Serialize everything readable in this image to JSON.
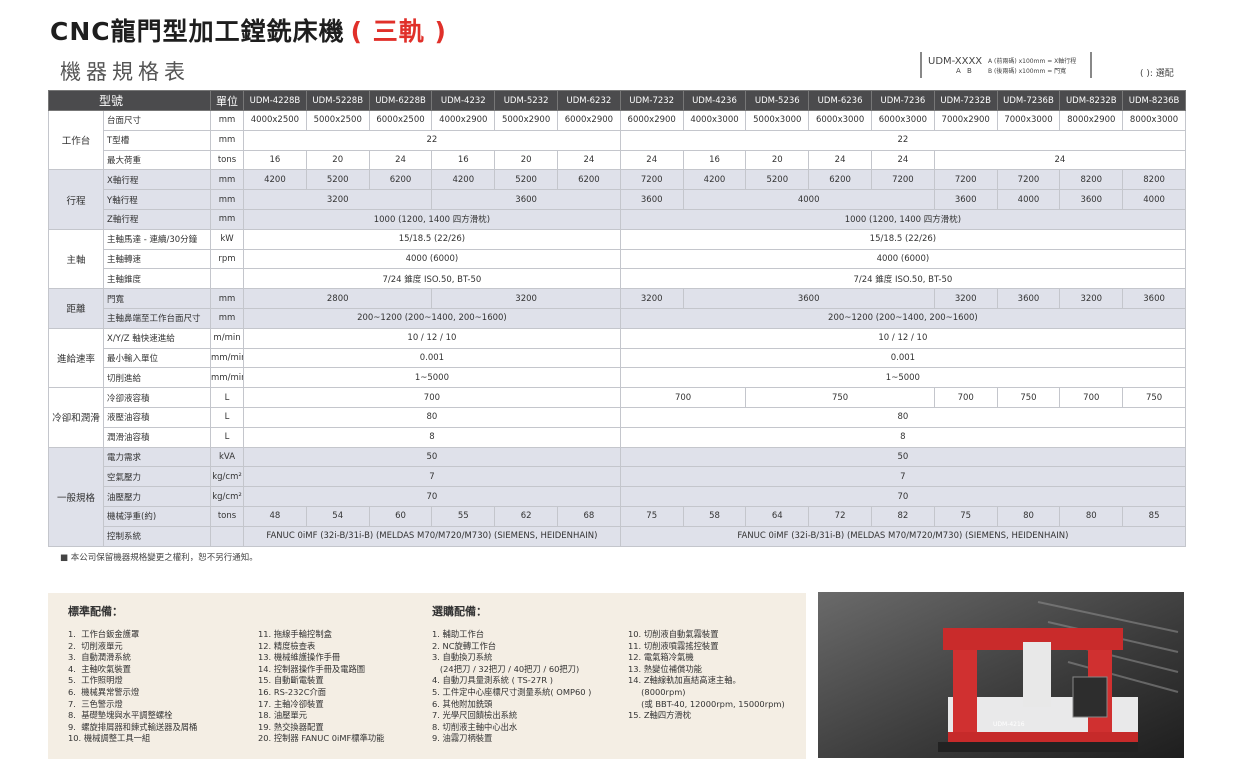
{
  "header": {
    "title": "CNC龍門型加工鏜銑床機",
    "title_highlight": "( 三軌 )",
    "subtitle": "機器規格表"
  },
  "legend": {
    "model_code": "UDM-XXXX",
    "code_letters": "A B",
    "note_a": "A (前兩碼) x100mm = X軸行程",
    "note_b": "B (後兩碼) x100mm = 門寬",
    "option_note": "( ): 選配"
  },
  "table": {
    "head": {
      "item": "型號",
      "unit": "單位",
      "models": [
        "UDM-4228B",
        "UDM-5228B",
        "UDM-6228B",
        "UDM-4232",
        "UDM-5232",
        "UDM-6232",
        "UDM-7232",
        "UDM-4236",
        "UDM-5236",
        "UDM-6236",
        "UDM-7236",
        "UDM-7232B",
        "UDM-7236B",
        "UDM-8232B",
        "UDM-8236B"
      ]
    },
    "groups": [
      {
        "name": "工作台",
        "rows": [
          {
            "item": "台面尺寸",
            "unit": "mm",
            "cells": [
              "4000x2500",
              "5000x2500",
              "6000x2500",
              "4000x2900",
              "5000x2900",
              "6000x2900",
              "6000x2900",
              "4000x3000",
              "5000x3000",
              "6000x3000",
              "6000x3000",
              "7000x2900",
              "7000x3000",
              "8000x2900",
              "8000x3000"
            ]
          },
          {
            "item": "T型槽",
            "unit": "mm",
            "cells": [
              "22",
              "22"
            ]
          },
          {
            "item": "最大荷重",
            "unit": "tons",
            "cells": [
              "16",
              "20",
              "24",
              "16",
              "20",
              "24",
              "24",
              "16",
              "20",
              "24",
              "24",
              "24"
            ]
          }
        ]
      },
      {
        "name": "行程",
        "rows": [
          {
            "item": "X軸行程",
            "unit": "mm",
            "cells": [
              "4200",
              "5200",
              "6200",
              "4200",
              "5200",
              "6200",
              "7200",
              "4200",
              "5200",
              "6200",
              "7200",
              "7200",
              "7200",
              "8200",
              "8200"
            ]
          },
          {
            "item": "Y軸行程",
            "unit": "mm",
            "cells": [
              "3200",
              "3600",
              "3600",
              "4000",
              "3600",
              "4000",
              "3600",
              "4000"
            ]
          },
          {
            "item": "Z軸行程",
            "unit": "mm",
            "cells": [
              "1000 (1200, 1400 四方滑枕)",
              "1000 (1200, 1400 四方滑枕)"
            ]
          }
        ]
      },
      {
        "name": "主軸",
        "rows": [
          {
            "item": "主軸馬達 - 連續/30分鐘",
            "unit": "kW",
            "cells": [
              "15/18.5 (22/26)",
              "15/18.5 (22/26)"
            ]
          },
          {
            "item": "主軸轉速",
            "unit": "rpm",
            "cells": [
              "4000 (6000)",
              "4000 (6000)"
            ]
          },
          {
            "item": "主軸錐度",
            "unit": null,
            "cells": [
              "7/24 錐度 ISO.50, BT-50",
              "7/24 錐度 ISO.50, BT-50"
            ]
          }
        ]
      },
      {
        "name": "距離",
        "rows": [
          {
            "item": "門寬",
            "unit": "mm",
            "cells": [
              "2800",
              "3200",
              "3200",
              "3600",
              "3200",
              "3600",
              "3200",
              "3600"
            ]
          },
          {
            "item": "主軸鼻端至工作台面尺寸",
            "unit": "mm",
            "cells": [
              "200~1200 (200~1400, 200~1600)",
              "200~1200 (200~1400, 200~1600)"
            ]
          }
        ]
      },
      {
        "name": "進給速率",
        "rows": [
          {
            "item": "X/Y/Z 軸快速進給",
            "unit": "m/min",
            "cells": [
              "10 / 12 / 10",
              "10 / 12 / 10"
            ]
          },
          {
            "item": "最小輸入單位",
            "unit": "mm/min",
            "cells": [
              "0.001",
              "0.001"
            ]
          },
          {
            "item": "切削進給",
            "unit": "mm/min",
            "cells": [
              "1~5000",
              "1~5000"
            ]
          }
        ]
      },
      {
        "name": "冷卻和潤滑",
        "rows": [
          {
            "item": "冷卻液容積",
            "unit": "L",
            "cells": [
              "700",
              "700",
              "750",
              "700",
              "750",
              "700",
              "750"
            ]
          },
          {
            "item": "液壓油容積",
            "unit": "L",
            "cells": [
              "80",
              "80"
            ]
          },
          {
            "item": "潤滑油容積",
            "unit": "L",
            "cells": [
              "8",
              "8"
            ]
          }
        ]
      },
      {
        "name": "一般規格",
        "rows": [
          {
            "item": "電力需求",
            "unit": "kVA",
            "cells": [
              "50",
              "50"
            ]
          },
          {
            "item": "空氣壓力",
            "unit": "kg/cm²",
            "cells": [
              "7",
              "7"
            ]
          },
          {
            "item": "油壓壓力",
            "unit": "kg/cm²",
            "cells": [
              "70",
              "70"
            ]
          },
          {
            "item": "機械淨重(約)",
            "unit": "tons",
            "cells": [
              "48",
              "54",
              "60",
              "55",
              "62",
              "68",
              "75",
              "58",
              "64",
              "72",
              "82",
              "75",
              "80",
              "80",
              "85"
            ]
          },
          {
            "item": "控制系統",
            "unit": null,
            "cells": [
              "FANUC 0iMF (32i-B/31i-B) (MELDAS M70/M720/M730) (SIEMENS, HEIDENHAIN)",
              "FANUC 0iMF (32i-B/31i-B) (MELDAS M70/M720/M730) (SIEMENS, HEIDENHAIN)"
            ]
          }
        ]
      }
    ]
  },
  "footnote": "■ 本公司保留機器規格變更之權利，恕不另行通知。",
  "standard_equipment": {
    "title": "標準配備：",
    "columns": [
      [
        "1.  工作台鈑金護罩",
        "2.  切削液單元",
        "3.  自動潤滑系統",
        "4.  主軸吹氣裝置",
        "5.  工作照明燈",
        "6.  機械異常警示燈",
        "7.  三色警示燈",
        "8.  基礎墊塊與水平調整螺栓",
        "9.  螺旋排屑器和鍊式輸送器及屑桶",
        "10. 機械調整工具一組"
      ],
      [
        "11. 拖線手輪控制盒",
        "12. 精度檢查表",
        "13. 機械維護操作手冊",
        "14. 控制器操作手冊及電路圖",
        "15. 自動斷電裝置",
        "16. RS-232C介面",
        "17. 主軸冷卻裝置",
        "18. 油壓單元",
        "19. 熱交換器配置",
        "20. 控制器 FANUC 0iMF標準功能"
      ]
    ]
  },
  "optional_equipment": {
    "title": "選購配備：",
    "columns": [
      [
        "1. 輔助工作台",
        "2. NC旋轉工作台",
        "3. 自動換刀系統",
        "   (24把刀 / 32把刀 / 40把刀 / 60把刀)",
        "4. 自動刀具量測系統 ( TS-27R )",
        "5. 工件定中心座標尺寸測量系統( OMP60 )",
        "6. 其他附加銑頭",
        "7. 光學尺回饋檢出系統",
        "8. 切削液主軸中心出水",
        "9. 油霧刀柄裝置"
      ],
      [
        "10. 切削液自動氣霧裝置",
        "11. 切削液噴霧搖控裝置",
        "12. 電氣箱冷氣機",
        "13. 熱變位補償功能",
        "14. Z軸線軌加直結高速主軸。",
        "     (8000rpm)",
        "     (或 BBT-40, 12000rpm, 15000rpm)",
        "15. Z軸四方滑枕"
      ]
    ]
  },
  "photo": {
    "machine_label": "UDM-4216"
  }
}
